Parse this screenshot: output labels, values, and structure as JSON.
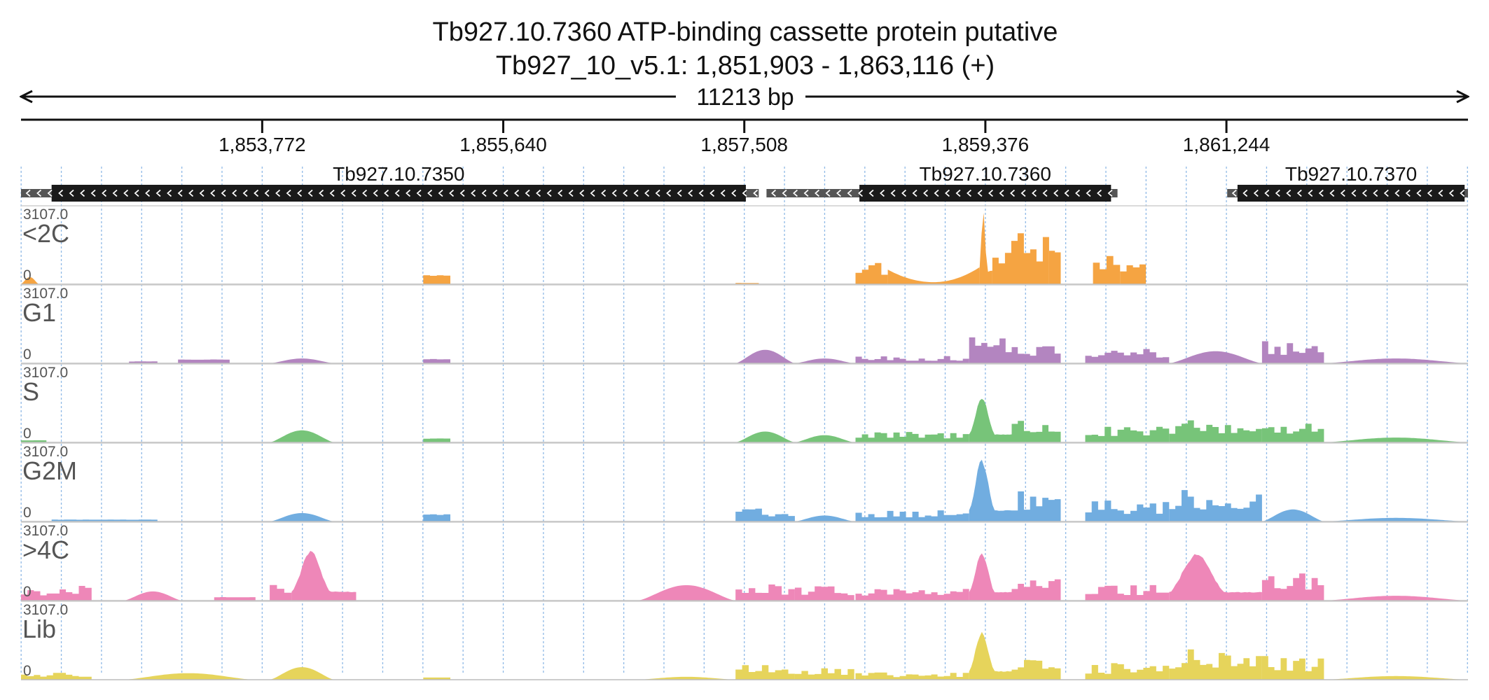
{
  "header": {
    "title": "Tb927.10.7360  ATP-binding cassette protein  putative",
    "subtitle": "Tb927_10_v5.1: 1,851,903 - 1,863,116 (+)",
    "span_label": "11213 bp"
  },
  "chart_data": {
    "type": "area",
    "title": "Tb927.10.7360  ATP-binding cassette protein  putative",
    "subtitle": "Tb927_10_v5.1: 1,851,903 - 1,863,116 (+)",
    "chromosome": "Tb927_10_v5.1",
    "xlim": [
      1851903,
      1863116
    ],
    "x_ticks": [
      1853772,
      1855640,
      1857508,
      1859376,
      1861244
    ],
    "x_tick_labels": [
      "1,853,772",
      "1,855,640",
      "1,857,508",
      "1,859,376",
      "1,861,244"
    ],
    "genes": [
      {
        "name": "Tb927.10.7350",
        "utr": [
          1851903,
          1857620
        ],
        "cds": [
          1852140,
          1857520
        ],
        "strand": "-"
      },
      {
        "name": "Tb927.10.7360",
        "utr": [
          1857680,
          1860400
        ],
        "cds": [
          1858400,
          1860350
        ],
        "strand": "-"
      },
      {
        "name": "Tb927.10.7370",
        "utr": [
          1861250,
          1863116
        ],
        "cds": [
          1861330,
          1863090
        ],
        "strand": "-"
      }
    ],
    "tracks": [
      {
        "name": "<2C",
        "color": "#f5a442",
        "ylim": [
          0,
          3107.0
        ],
        "ymax_label": "3107.0",
        "ymin_label": "0",
        "segments": [
          {
            "x": [
              1851903,
              1852040
            ],
            "profile": "bump",
            "peak": 300
          },
          {
            "x": [
              1855020,
              1855230
            ],
            "profile": "flat",
            "peak": 380
          },
          {
            "x": [
              1857440,
              1857620
            ],
            "profile": "flat",
            "peak": 50
          },
          {
            "x": [
              1858370,
              1858620
            ],
            "profile": "jag",
            "peak": 1100
          },
          {
            "x": [
              1858620,
              1859330
            ],
            "profile": "valley",
            "peak": 700
          },
          {
            "x": [
              1859330,
              1859430
            ],
            "profile": "spike",
            "peak": 3107
          },
          {
            "x": [
              1859430,
              1859870
            ],
            "profile": "jag",
            "peak": 2400
          },
          {
            "x": [
              1859870,
              1859960
            ],
            "profile": "flat",
            "peak": 1400
          },
          {
            "x": [
              1860210,
              1860420
            ],
            "profile": "jag",
            "peak": 1700
          },
          {
            "x": [
              1860420,
              1860620
            ],
            "profile": "jag",
            "peak": 1200
          }
        ]
      },
      {
        "name": "G1",
        "color": "#b385c0",
        "ylim": [
          0,
          3107.0
        ],
        "ymax_label": "3107.0",
        "ymin_label": "0",
        "segments": [
          {
            "x": [
              1852740,
              1852960
            ],
            "profile": "flat",
            "peak": 80
          },
          {
            "x": [
              1853120,
              1853520
            ],
            "profile": "flat",
            "peak": 160
          },
          {
            "x": [
              1853830,
              1854330
            ],
            "profile": "bump",
            "peak": 200
          },
          {
            "x": [
              1855020,
              1855230
            ],
            "profile": "flat",
            "peak": 180
          },
          {
            "x": [
              1857440,
              1857900
            ],
            "profile": "bump",
            "peak": 560
          },
          {
            "x": [
              1857900,
              1858360
            ],
            "profile": "bump",
            "peak": 200
          },
          {
            "x": [
              1858370,
              1859250
            ],
            "profile": "jag",
            "peak": 300
          },
          {
            "x": [
              1859250,
              1859580
            ],
            "profile": "jag",
            "peak": 1300
          },
          {
            "x": [
              1859580,
              1859960
            ],
            "profile": "jag",
            "peak": 800
          },
          {
            "x": [
              1860150,
              1860800
            ],
            "profile": "jag",
            "peak": 650
          },
          {
            "x": [
              1860800,
              1861520
            ],
            "profile": "bump",
            "peak": 500
          },
          {
            "x": [
              1861520,
              1862000
            ],
            "profile": "jag",
            "peak": 1000
          },
          {
            "x": [
              1862000,
              1863116
            ],
            "profile": "bump",
            "peak": 200
          }
        ]
      },
      {
        "name": "S",
        "color": "#77c479",
        "ylim": [
          0,
          3107.0
        ],
        "ymax_label": "3107.0",
        "ymin_label": "0",
        "segments": [
          {
            "x": [
              1851903,
              1852100
            ],
            "profile": "flat",
            "peak": 90
          },
          {
            "x": [
              1853830,
              1854330
            ],
            "profile": "bump",
            "peak": 500
          },
          {
            "x": [
              1855020,
              1855230
            ],
            "profile": "flat",
            "peak": 170
          },
          {
            "x": [
              1857440,
              1857900
            ],
            "profile": "bump",
            "peak": 450
          },
          {
            "x": [
              1857900,
              1858360
            ],
            "profile": "bump",
            "peak": 300
          },
          {
            "x": [
              1858370,
              1859250
            ],
            "profile": "jag",
            "peak": 450
          },
          {
            "x": [
              1859250,
              1859580
            ],
            "profile": "spike",
            "peak": 1900
          },
          {
            "x": [
              1859580,
              1859960
            ],
            "profile": "jag",
            "peak": 1000
          },
          {
            "x": [
              1860150,
              1860800
            ],
            "profile": "jag",
            "peak": 650
          },
          {
            "x": [
              1860800,
              1861520
            ],
            "profile": "jag",
            "peak": 1000
          },
          {
            "x": [
              1861520,
              1862000
            ],
            "profile": "jag",
            "peak": 1000
          },
          {
            "x": [
              1862000,
              1863116
            ],
            "profile": "bump",
            "peak": 200
          }
        ]
      },
      {
        "name": "G2M",
        "color": "#71ade0",
        "ylim": [
          0,
          3107.0
        ],
        "ymax_label": "3107.0",
        "ymin_label": "0",
        "segments": [
          {
            "x": [
              1852140,
              1852960
            ],
            "profile": "flat",
            "peak": 80
          },
          {
            "x": [
              1853830,
              1854330
            ],
            "profile": "bump",
            "peak": 350
          },
          {
            "x": [
              1855020,
              1855230
            ],
            "profile": "flat",
            "peak": 300
          },
          {
            "x": [
              1857440,
              1857900
            ],
            "profile": "jag",
            "peak": 550
          },
          {
            "x": [
              1857900,
              1858360
            ],
            "profile": "bump",
            "peak": 250
          },
          {
            "x": [
              1858370,
              1859250
            ],
            "profile": "jag",
            "peak": 500
          },
          {
            "x": [
              1859250,
              1859580
            ],
            "profile": "spike",
            "peak": 2600
          },
          {
            "x": [
              1859580,
              1859960
            ],
            "profile": "jag",
            "peak": 1300
          },
          {
            "x": [
              1860150,
              1860800
            ],
            "profile": "jag",
            "peak": 900
          },
          {
            "x": [
              1860800,
              1861520
            ],
            "profile": "jag",
            "peak": 1400
          },
          {
            "x": [
              1861520,
              1862000
            ],
            "profile": "bump",
            "peak": 500
          },
          {
            "x": [
              1862000,
              1863116
            ],
            "profile": "bump",
            "peak": 150
          }
        ]
      },
      {
        "name": ">4C",
        "color": "#ee87b8",
        "ylim": [
          0,
          3107.0
        ],
        "ymax_label": "3107.0",
        "ymin_label": "0",
        "segments": [
          {
            "x": [
              1851903,
              1852450
            ],
            "profile": "jag",
            "peak": 620
          },
          {
            "x": [
              1852700,
              1853150
            ],
            "profile": "bump",
            "peak": 380
          },
          {
            "x": [
              1853400,
              1853720
            ],
            "profile": "flat",
            "peak": 150
          },
          {
            "x": [
              1853830,
              1854000
            ],
            "profile": "jag",
            "peak": 900
          },
          {
            "x": [
              1854000,
              1854500
            ],
            "profile": "spike",
            "peak": 2100
          },
          {
            "x": [
              1856680,
              1857440
            ],
            "profile": "bump",
            "peak": 640
          },
          {
            "x": [
              1857440,
              1857900
            ],
            "profile": "jag",
            "peak": 700
          },
          {
            "x": [
              1857900,
              1858360
            ],
            "profile": "jag",
            "peak": 600
          },
          {
            "x": [
              1858370,
              1859250
            ],
            "profile": "jag",
            "peak": 600
          },
          {
            "x": [
              1859250,
              1859580
            ],
            "profile": "spike",
            "peak": 2000
          },
          {
            "x": [
              1859580,
              1859960
            ],
            "profile": "jag",
            "peak": 900
          },
          {
            "x": [
              1860150,
              1860800
            ],
            "profile": "jag",
            "peak": 650
          },
          {
            "x": [
              1860800,
              1861520
            ],
            "profile": "spike",
            "peak": 2000
          },
          {
            "x": [
              1861520,
              1862000
            ],
            "profile": "jag",
            "peak": 1300
          },
          {
            "x": [
              1862000,
              1863116
            ],
            "profile": "bump",
            "peak": 200
          }
        ]
      },
      {
        "name": "Lib",
        "color": "#e6d45b",
        "ylim": [
          0,
          3107.0
        ],
        "ymax_label": "3107.0",
        "ymin_label": "0",
        "segments": [
          {
            "x": [
              1851903,
              1852450
            ],
            "profile": "jag",
            "peak": 330
          },
          {
            "x": [
              1852700,
              1853700
            ],
            "profile": "bump",
            "peak": 270
          },
          {
            "x": [
              1853830,
              1854330
            ],
            "profile": "bump",
            "peak": 520
          },
          {
            "x": [
              1855020,
              1855230
            ],
            "profile": "flat",
            "peak": 100
          },
          {
            "x": [
              1856680,
              1857440
            ],
            "profile": "bump",
            "peak": 120
          },
          {
            "x": [
              1857440,
              1857900
            ],
            "profile": "jag",
            "peak": 700
          },
          {
            "x": [
              1857900,
              1858360
            ],
            "profile": "jag",
            "peak": 500
          },
          {
            "x": [
              1858370,
              1859250
            ],
            "profile": "jag",
            "peak": 300
          },
          {
            "x": [
              1859250,
              1859580
            ],
            "profile": "spike",
            "peak": 2000
          },
          {
            "x": [
              1859580,
              1859960
            ],
            "profile": "jag",
            "peak": 1000
          },
          {
            "x": [
              1860150,
              1860800
            ],
            "profile": "jag",
            "peak": 700
          },
          {
            "x": [
              1860800,
              1861520
            ],
            "profile": "jag",
            "peak": 1300
          },
          {
            "x": [
              1861520,
              1862000
            ],
            "profile": "jag",
            "peak": 1000
          },
          {
            "x": [
              1862000,
              1863116
            ],
            "profile": "bump",
            "peak": 150
          }
        ]
      }
    ]
  }
}
